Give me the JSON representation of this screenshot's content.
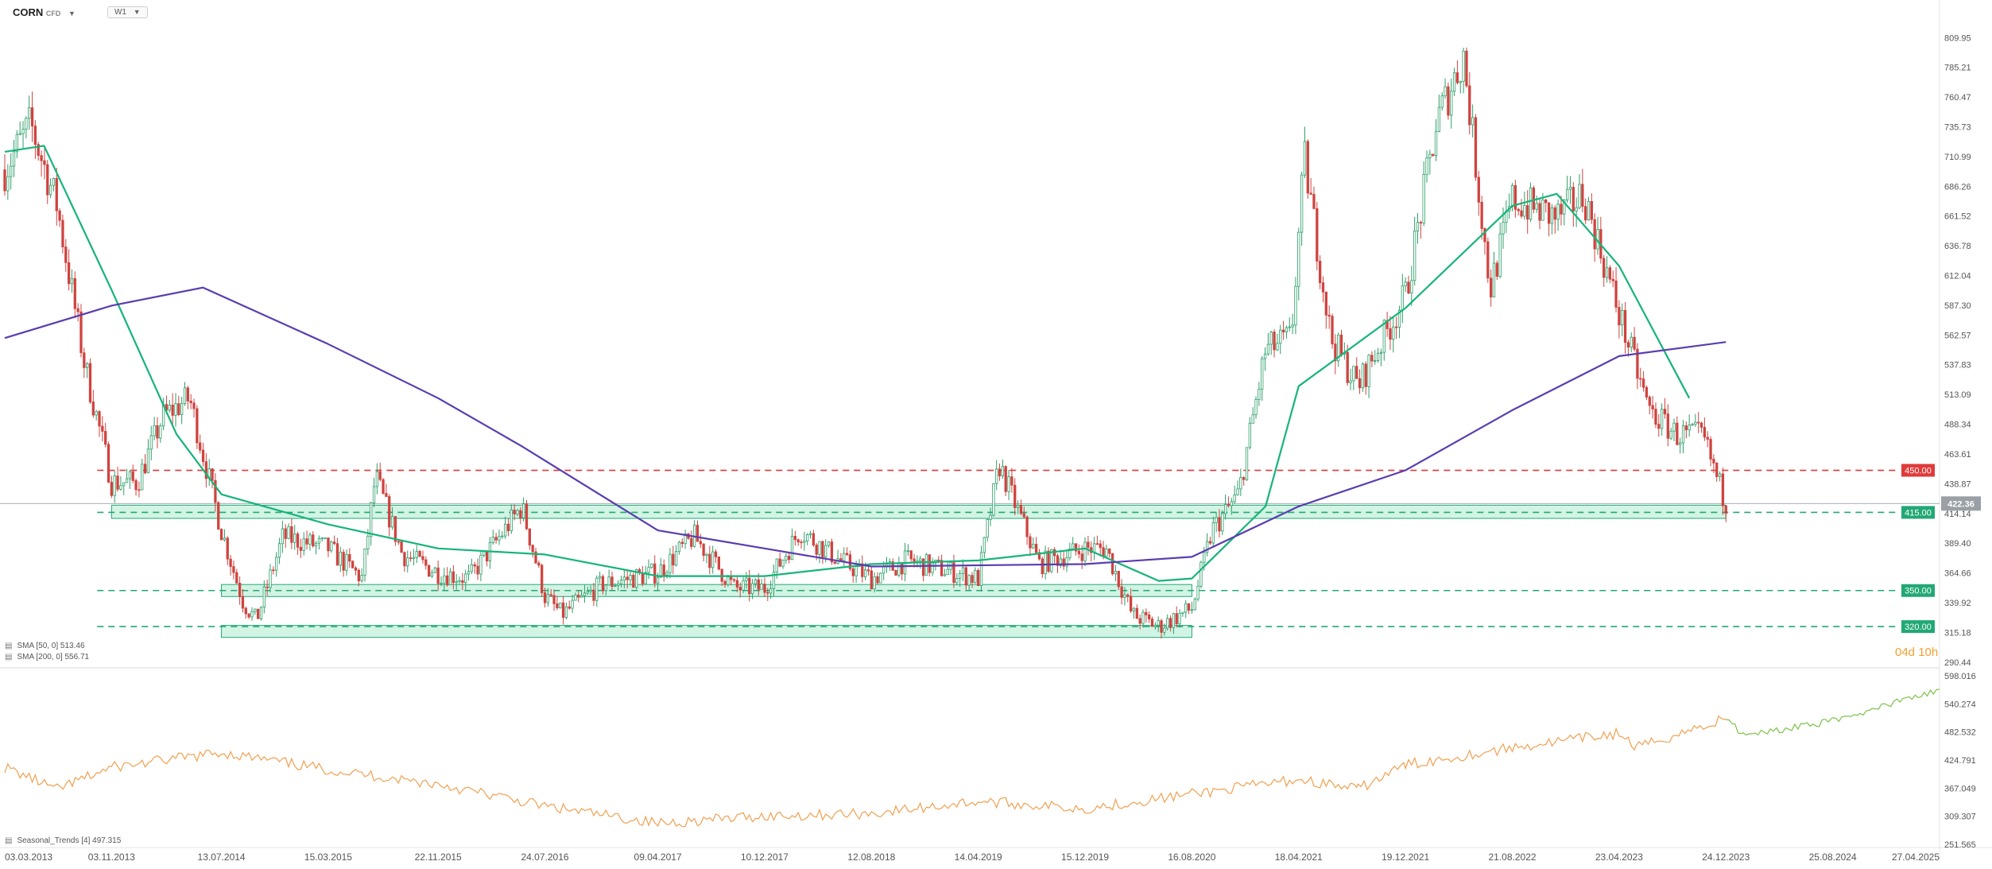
{
  "header": {
    "symbol": "CORN",
    "symbol_type": "CFD",
    "timeframe": "W1"
  },
  "legends": {
    "sma50": "SMA [50, 0]  513.46",
    "sma200": "SMA [200, 0]  556.71",
    "seasonal": "Seasonal_Trends [4]  497.315"
  },
  "countdown": "04d 10h",
  "colors": {
    "up": "#2e9e6a",
    "down": "#d0433f",
    "sma50": "#16b47a",
    "sma200": "#5a3db0",
    "seasonal_history": "#f0a050",
    "seasonal_projection": "#7cc24a",
    "resistance": "#e03a3a",
    "support": "#22a875",
    "price_tag": "#9aa0a6"
  },
  "chart_data": [
    {
      "type": "candlestick",
      "title": "CORN CFD W1",
      "x_axis_labels": [
        "03.03.2013",
        "03.11.2013",
        "13.07.2014",
        "15.03.2015",
        "22.11.2015",
        "24.07.2016",
        "09.04.2017",
        "10.12.2017",
        "12.08.2018",
        "14.04.2019",
        "15.12.2019",
        "16.08.2020",
        "18.04.2021",
        "19.12.2021",
        "21.08.2022",
        "23.04.2023",
        "24.12.2023",
        "25.08.2024",
        "27.04.2025"
      ],
      "y_axis_labels": [
        809.95,
        785.21,
        760.47,
        735.73,
        710.99,
        686.26,
        661.52,
        636.78,
        612.04,
        587.3,
        562.57,
        537.83,
        513.09,
        488.34,
        463.61,
        438.87,
        414.14,
        389.4,
        364.66,
        339.92,
        315.18,
        290.44
      ],
      "ylim": [
        287,
        828
      ],
      "current_price": 422.36,
      "horizontal_levels": [
        {
          "value": 450.0,
          "label": "450.00",
          "kind": "resistance"
        },
        {
          "value": 415.0,
          "label": "415.00",
          "kind": "support"
        },
        {
          "value": 350.0,
          "label": "350.00",
          "kind": "support"
        },
        {
          "value": 320.0,
          "label": "320.00",
          "kind": "support"
        }
      ],
      "zones": [
        {
          "from": "03.11.2013",
          "to": "24.12.2023",
          "low": 410,
          "high": 421
        },
        {
          "from": "13.07.2014",
          "to": "16.08.2020",
          "low": 345,
          "high": 355
        },
        {
          "from": "13.07.2014",
          "to": "16.08.2020",
          "low": 311,
          "high": 321
        }
      ],
      "price_path": [
        [
          "03.03.2013",
          700
        ],
        [
          "01.05.2013",
          738
        ],
        [
          "01.07.2013",
          670
        ],
        [
          "01.09.2013",
          540
        ],
        [
          "03.11.2013",
          440
        ],
        [
          "01.01.2014",
          440
        ],
        [
          "01.03.2014",
          495
        ],
        [
          "01.05.2014",
          510
        ],
        [
          "13.07.2014",
          400
        ],
        [
          "01.09.2014",
          340
        ],
        [
          "01.10.2014",
          325
        ],
        [
          "01.12.2014",
          395
        ],
        [
          "15.03.2015",
          385
        ],
        [
          "01.06.2015",
          360
        ],
        [
          "01.07.2015",
          445
        ],
        [
          "01.09.2015",
          380
        ],
        [
          "22.11.2015",
          365
        ],
        [
          "01.02.2016",
          360
        ],
        [
          "01.06.2016",
          420
        ],
        [
          "24.07.2016",
          345
        ],
        [
          "01.09.2016",
          330
        ],
        [
          "01.12.2016",
          355
        ],
        [
          "09.04.2017",
          365
        ],
        [
          "01.07.2017",
          395
        ],
        [
          "01.10.2017",
          352
        ],
        [
          "10.12.2017",
          352
        ],
        [
          "01.03.2018",
          400
        ],
        [
          "01.06.2018",
          375
        ],
        [
          "12.08.2018",
          360
        ],
        [
          "01.11.2018",
          375
        ],
        [
          "14.04.2019",
          360
        ],
        [
          "01.06.2019",
          455
        ],
        [
          "01.09.2019",
          372
        ],
        [
          "15.12.2019",
          385
        ],
        [
          "01.02.2020",
          385
        ],
        [
          "01.04.2020",
          330
        ],
        [
          "01.06.2020",
          320
        ],
        [
          "16.08.2020",
          335
        ],
        [
          "01.10.2020",
          400
        ],
        [
          "01.12.2020",
          430
        ],
        [
          "01.02.2021",
          550
        ],
        [
          "01.04.2021",
          560
        ],
        [
          "01.05.2021",
          710
        ],
        [
          "01.07.2021",
          560
        ],
        [
          "01.09.2021",
          520
        ],
        [
          "19.12.2021",
          595
        ],
        [
          "01.03.2022",
          740
        ],
        [
          "01.05.2022",
          795
        ],
        [
          "01.07.2022",
          600
        ],
        [
          "21.08.2022",
          675
        ],
        [
          "01.12.2022",
          660
        ],
        [
          "01.02.2023",
          680
        ],
        [
          "23.04.2023",
          580
        ],
        [
          "01.07.2023",
          500
        ],
        [
          "01.09.2023",
          480
        ],
        [
          "01.11.2023",
          478
        ],
        [
          "24.12.2023",
          422.36
        ]
      ],
      "series": [
        {
          "name": "SMA [50, 0]",
          "points": [
            [
              "03.03.2013",
              715
            ],
            [
              "01.06.2013",
              720
            ],
            [
              "03.11.2013",
              600
            ],
            [
              "01.04.2014",
              480
            ],
            [
              "13.07.2014",
              430
            ],
            [
              "15.03.2015",
              405
            ],
            [
              "22.11.2015",
              385
            ],
            [
              "24.07.2016",
              380
            ],
            [
              "09.04.2017",
              362
            ],
            [
              "10.12.2017",
              362
            ],
            [
              "12.08.2018",
              372
            ],
            [
              "14.04.2019",
              375
            ],
            [
              "15.12.2019",
              385
            ],
            [
              "01.06.2020",
              358
            ],
            [
              "16.08.2020",
              360
            ],
            [
              "01.02.2021",
              420
            ],
            [
              "18.04.2021",
              520
            ],
            [
              "19.12.2021",
              585
            ],
            [
              "21.08.2022",
              670
            ],
            [
              "01.12.2022",
              680
            ],
            [
              "23.04.2023",
              620
            ],
            [
              "01.10.2023",
              510
            ]
          ]
        },
        {
          "name": "SMA [200, 0]",
          "points": [
            [
              "03.03.2013",
              560
            ],
            [
              "03.11.2013",
              587
            ],
            [
              "01.06.2014",
              602
            ],
            [
              "15.03.2015",
              555
            ],
            [
              "22.11.2015",
              510
            ],
            [
              "01.06.2016",
              470
            ],
            [
              "09.04.2017",
              400
            ],
            [
              "10.12.2017",
              385
            ],
            [
              "12.08.2018",
              370
            ],
            [
              "15.12.2019",
              372
            ],
            [
              "16.08.2020",
              378
            ],
            [
              "18.04.2021",
              420
            ],
            [
              "19.12.2021",
              450
            ],
            [
              "21.08.2022",
              500
            ],
            [
              "23.04.2023",
              545
            ],
            [
              "24.12.2023",
              556.71
            ]
          ]
        }
      ]
    },
    {
      "type": "line",
      "title": "Seasonal_Trends [4]",
      "y_axis_labels": [
        598.016,
        540.274,
        482.532,
        424.791,
        367.049,
        309.307,
        251.565
      ],
      "ylim": [
        251.565,
        598.016
      ],
      "series": [
        {
          "name": "Seasonal_Trends [4]",
          "points": [
            [
              "03.03.2013",
              410
            ],
            [
              "01.07.2013",
              365
            ],
            [
              "03.11.2013",
              410
            ],
            [
              "13.07.2014",
              440
            ],
            [
              "15.03.2015",
              405
            ],
            [
              "22.11.2015",
              375
            ],
            [
              "24.07.2016",
              330
            ],
            [
              "09.04.2017",
              295
            ],
            [
              "10.12.2017",
              310
            ],
            [
              "12.08.2018",
              315
            ],
            [
              "14.04.2019",
              340
            ],
            [
              "15.12.2019",
              325
            ],
            [
              "16.08.2020",
              355
            ],
            [
              "18.04.2021",
              385
            ],
            [
              "01.09.2021",
              365
            ],
            [
              "19.12.2021",
              415
            ],
            [
              "21.08.2022",
              450
            ],
            [
              "23.04.2023",
              480
            ],
            [
              "01.06.2023",
              450
            ],
            [
              "24.12.2023",
              510
            ]
          ]
        },
        {
          "name": "projection",
          "points": [
            [
              "24.12.2023",
              515
            ],
            [
              "01.02.2024",
              475
            ],
            [
              "25.08.2024",
              505
            ],
            [
              "27.04.2025",
              570
            ]
          ]
        }
      ]
    }
  ]
}
